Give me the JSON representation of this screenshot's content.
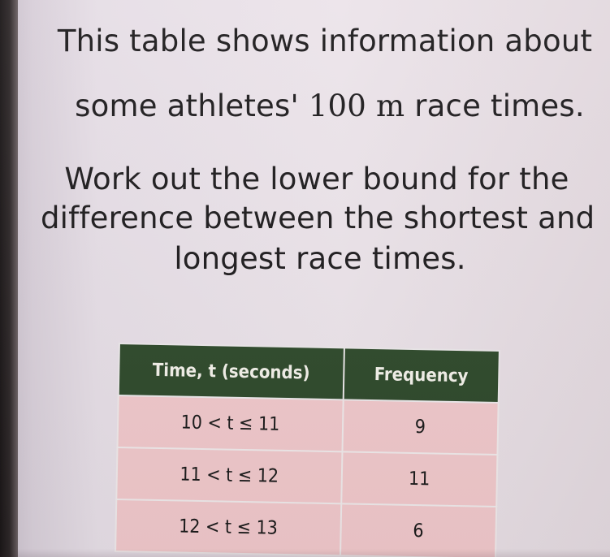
{
  "question": {
    "line1": "This table shows information about",
    "line2_pre": "some athletes' ",
    "line2_unit": "100 m",
    "line2_post": " race times.",
    "line3": "Work out the lower bound for the",
    "line4": "difference between the shortest and",
    "line5": "longest race times."
  },
  "table": {
    "headers": [
      "Time, t (seconds)",
      "Frequency"
    ],
    "rows": [
      {
        "time": "10 < t ≤ 11",
        "frequency": "9"
      },
      {
        "time": "11 < t ≤ 12",
        "frequency": "11"
      },
      {
        "time": "12 < t ≤ 13",
        "frequency": "6"
      }
    ]
  },
  "colors": {
    "header_bg": "#2f4a2c",
    "header_text": "#f3f1ea",
    "cell_bg": "#f0c8cb",
    "page_bg": "#ece4ea"
  }
}
